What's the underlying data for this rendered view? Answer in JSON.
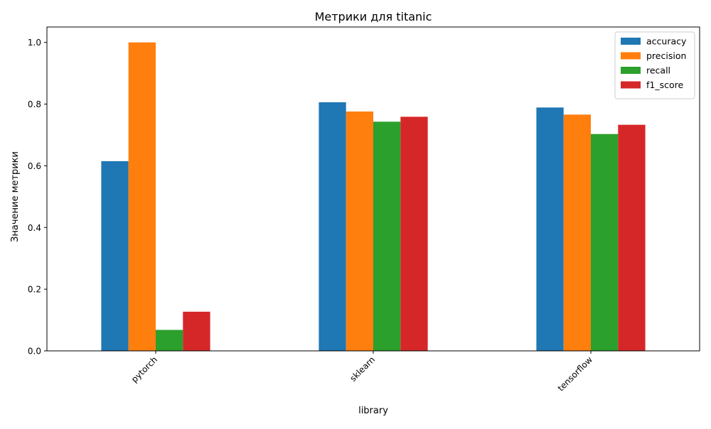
{
  "chart_data": {
    "type": "bar",
    "title": "Метрики для titanic",
    "xlabel": "library",
    "ylabel": "Значение метрики",
    "categories": [
      "pytorch",
      "sklearn",
      "tensorflow"
    ],
    "series": [
      {
        "name": "accuracy",
        "color": "#1f77b4",
        "values": [
          0.615,
          0.806,
          0.789
        ]
      },
      {
        "name": "precision",
        "color": "#ff7f0e",
        "values": [
          1.0,
          0.776,
          0.766
        ]
      },
      {
        "name": "recall",
        "color": "#2ca02c",
        "values": [
          0.068,
          0.743,
          0.703
        ]
      },
      {
        "name": "f1_score",
        "color": "#d62728",
        "values": [
          0.127,
          0.759,
          0.733
        ]
      }
    ],
    "ylim": [
      0,
      1.05
    ],
    "yticks": [
      "0.0",
      "0.2",
      "0.4",
      "0.6",
      "0.8",
      "1.0"
    ],
    "x_tick_rotation": 45,
    "grid": false,
    "legend_position": "top-right"
  }
}
